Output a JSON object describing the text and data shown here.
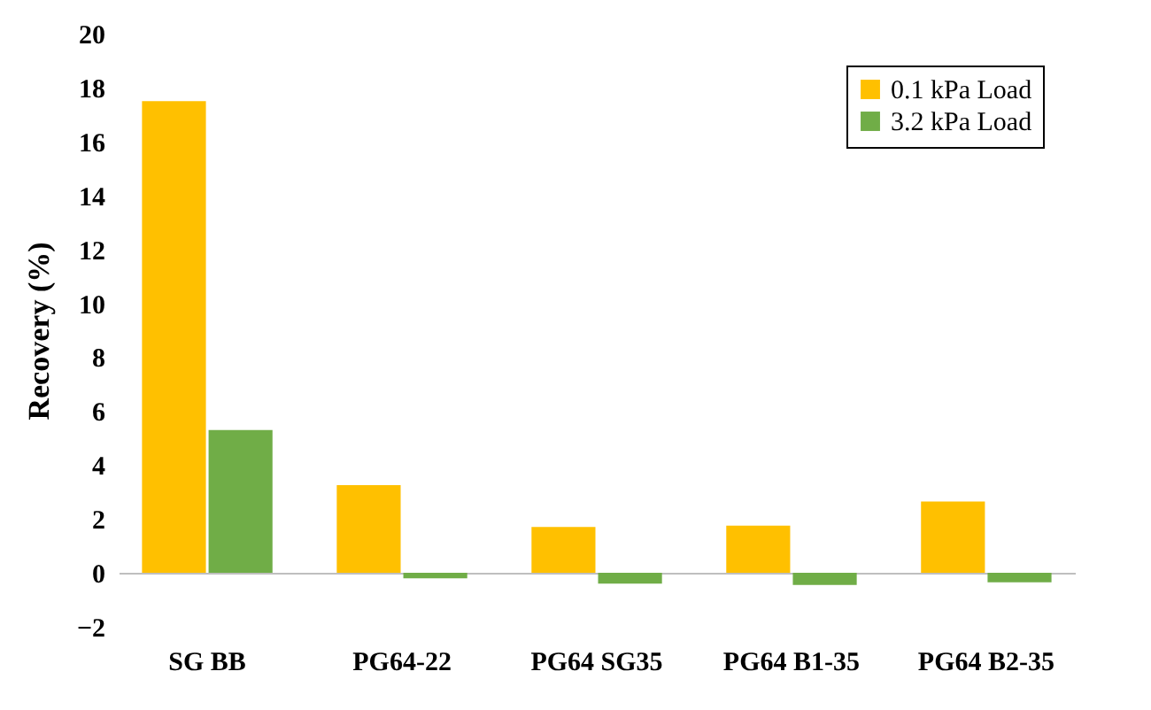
{
  "chart_data": {
    "type": "bar",
    "ylabel": "Recovery (%)",
    "categories": [
      "SG BB",
      "PG64-22",
      "PG64 SG35",
      "PG64 B1-35",
      "PG64 B2-35"
    ],
    "series": [
      {
        "name": "0.1 kPa Load",
        "color": "#ffc000",
        "values": [
          17.5,
          3.25,
          1.7,
          1.75,
          2.65
        ]
      },
      {
        "name": "3.2 kPa Load",
        "color": "#70ad47",
        "values": [
          5.3,
          -0.2,
          -0.4,
          -0.45,
          -0.35
        ]
      }
    ],
    "ylim": [
      -2,
      20
    ],
    "yticks": [
      -2,
      0,
      2,
      4,
      6,
      8,
      10,
      12,
      14,
      16,
      18,
      20
    ],
    "legend": "top right"
  }
}
